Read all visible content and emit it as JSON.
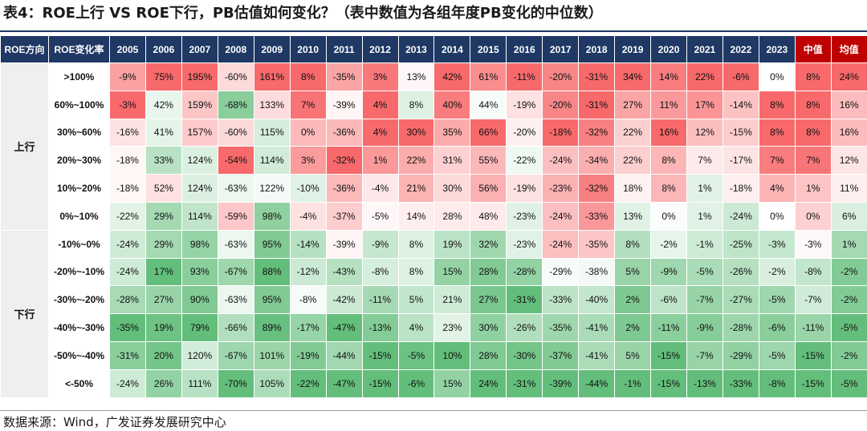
{
  "title": "表4：ROE上行 VS ROE下行，PB估值如何变化？（表中数值为各组年度PB变化的中位数）",
  "header": {
    "dir_label": "ROE方向",
    "rate_label": "ROE变化率",
    "years": [
      "2005",
      "2006",
      "2007",
      "2008",
      "2009",
      "2010",
      "2011",
      "2012",
      "2013",
      "2014",
      "2015",
      "2016",
      "2017",
      "2018",
      "2019",
      "2020",
      "2021",
      "2022",
      "2023"
    ],
    "median_label": "中值",
    "mean_label": "均值"
  },
  "groups": [
    {
      "label": "上行",
      "rows": [
        {
          "rate": ">100%",
          "values": [
            "-9%",
            "75%",
            "195%",
            "-60%",
            "161%",
            "8%",
            "-35%",
            "3%",
            "13%",
            "42%",
            "61%",
            "-11%",
            "-20%",
            "-31%",
            "34%",
            "14%",
            "22%",
            "-6%",
            "0%"
          ],
          "median": "8%",
          "mean": "24%"
        },
        {
          "rate": "60%~100%",
          "values": [
            "-3%",
            "42%",
            "159%",
            "-68%",
            "133%",
            "7%",
            "-39%",
            "4%",
            "8%",
            "40%",
            "44%",
            "-19%",
            "-20%",
            "-31%",
            "27%",
            "11%",
            "17%",
            "-14%",
            "8%"
          ],
          "median": "8%",
          "mean": "16%"
        },
        {
          "rate": "30%~60%",
          "values": [
            "-16%",
            "41%",
            "157%",
            "-60%",
            "115%",
            "0%",
            "-36%",
            "4%",
            "30%",
            "35%",
            "66%",
            "-20%",
            "-18%",
            "-32%",
            "22%",
            "16%",
            "12%",
            "-15%",
            "8%"
          ],
          "median": "8%",
          "mean": "16%"
        },
        {
          "rate": "20%~30%",
          "values": [
            "-18%",
            "33%",
            "124%",
            "-54%",
            "114%",
            "3%",
            "-32%",
            "1%",
            "22%",
            "31%",
            "55%",
            "-22%",
            "-24%",
            "-34%",
            "22%",
            "8%",
            "7%",
            "-17%",
            "7%"
          ],
          "median": "7%",
          "mean": "12%"
        },
        {
          "rate": "10%~20%",
          "values": [
            "-18%",
            "52%",
            "124%",
            "-63%",
            "122%",
            "-10%",
            "-36%",
            "-4%",
            "21%",
            "30%",
            "56%",
            "-19%",
            "-23%",
            "-32%",
            "18%",
            "8%",
            "1%",
            "-18%",
            "4%"
          ],
          "median": "1%",
          "mean": "11%"
        },
        {
          "rate": "0%~10%",
          "values": [
            "-22%",
            "29%",
            "114%",
            "-59%",
            "98%",
            "-4%",
            "-37%",
            "-5%",
            "14%",
            "28%",
            "48%",
            "-23%",
            "-24%",
            "-33%",
            "13%",
            "0%",
            "1%",
            "-24%",
            "0%"
          ],
          "median": "0%",
          "mean": "6%"
        }
      ]
    },
    {
      "label": "下行",
      "rows": [
        {
          "rate": "-10%~0%",
          "values": [
            "-24%",
            "29%",
            "98%",
            "-63%",
            "95%",
            "-14%",
            "-39%",
            "-9%",
            "8%",
            "19%",
            "32%",
            "-23%",
            "-24%",
            "-35%",
            "8%",
            "-2%",
            "-1%",
            "-25%",
            "-3%"
          ],
          "median": "-3%",
          "mean": "1%"
        },
        {
          "rate": "-20%~-10%",
          "values": [
            "-24%",
            "17%",
            "93%",
            "-67%",
            "88%",
            "-12%",
            "-43%",
            "-8%",
            "8%",
            "15%",
            "28%",
            "-28%",
            "-29%",
            "-38%",
            "5%",
            "-9%",
            "-5%",
            "-26%",
            "-2%"
          ],
          "median": "-8%",
          "mean": "-2%"
        },
        {
          "rate": "-30%~-20%",
          "values": [
            "-28%",
            "27%",
            "90%",
            "-63%",
            "95%",
            "-8%",
            "-42%",
            "-11%",
            "5%",
            "21%",
            "27%",
            "-31%",
            "-33%",
            "-40%",
            "2%",
            "-6%",
            "-7%",
            "-27%",
            "-5%"
          ],
          "median": "-7%",
          "mean": "-2%"
        },
        {
          "rate": "-40%~-30%",
          "values": [
            "-35%",
            "19%",
            "79%",
            "-66%",
            "89%",
            "-17%",
            "-47%",
            "-13%",
            "4%",
            "23%",
            "30%",
            "-26%",
            "-35%",
            "-41%",
            "2%",
            "-11%",
            "-9%",
            "-28%",
            "-6%"
          ],
          "median": "-11%",
          "mean": "-5%"
        },
        {
          "rate": "-50%~-40%",
          "values": [
            "-31%",
            "20%",
            "120%",
            "-67%",
            "101%",
            "-19%",
            "-44%",
            "-15%",
            "-5%",
            "10%",
            "28%",
            "-30%",
            "-37%",
            "-41%",
            "5%",
            "-15%",
            "-7%",
            "-29%",
            "-5%"
          ],
          "median": "-15%",
          "mean": "-2%"
        },
        {
          "rate": "<-50%",
          "values": [
            "-24%",
            "26%",
            "111%",
            "-70%",
            "105%",
            "-22%",
            "-47%",
            "-15%",
            "-6%",
            "15%",
            "24%",
            "-31%",
            "-39%",
            "-44%",
            "-1%",
            "-15%",
            "-13%",
            "-33%",
            "-8%"
          ],
          "median": "-15%",
          "mean": "-5%"
        }
      ]
    }
  ],
  "colors": {
    "header_bg": "#1f3864",
    "header_highlight_bg": "#c00000",
    "positive_max": "#f8696b",
    "neutral": "#ffffff",
    "negative_max": "#63be7b"
  },
  "source": "数据来源：Wind，广发证券发展研究中心"
}
